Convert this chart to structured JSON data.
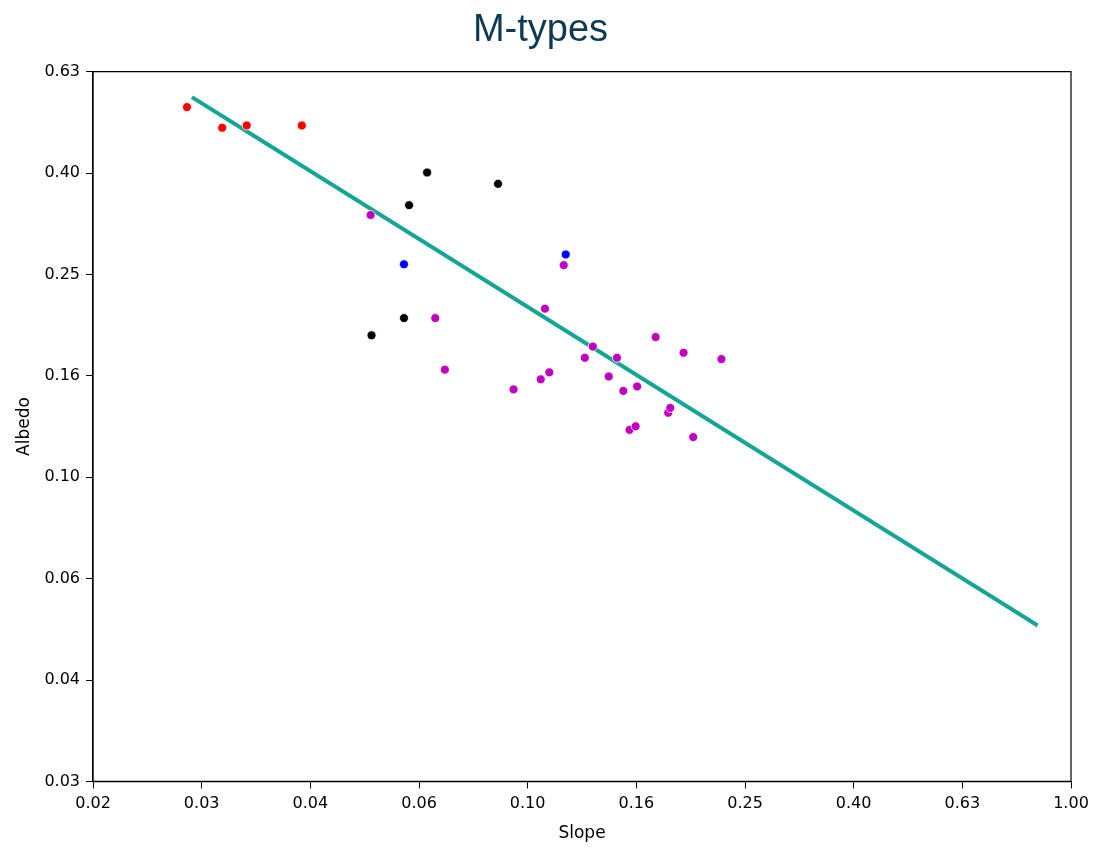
{
  "chart_data": {
    "type": "scatter",
    "title": "M-types",
    "xlabel": "Slope",
    "ylabel": "Albedo",
    "log": "xy",
    "grid": false,
    "legend": false,
    "xlim": [
      0.01585,
      1.0
    ],
    "xticks": [
      {
        "value": 0.01585,
        "label": "0.02"
      },
      {
        "value": 0.02512,
        "label": "0.03"
      },
      {
        "value": 0.03981,
        "label": "0.04"
      },
      {
        "value": 0.0631,
        "label": "0.06"
      },
      {
        "value": 0.1,
        "label": "0.10"
      },
      {
        "value": 0.1585,
        "label": "0.16"
      },
      {
        "value": 0.2512,
        "label": "0.25"
      },
      {
        "value": 0.3981,
        "label": "0.40"
      },
      {
        "value": 0.631,
        "label": "0.63"
      },
      {
        "value": 1.0,
        "label": "1.00"
      }
    ],
    "ylim": [
      0.02512,
      0.631
    ],
    "yticks": [
      {
        "value": 0.02512,
        "label": "0.03"
      },
      {
        "value": 0.03981,
        "label": "0.04"
      },
      {
        "value": 0.0631,
        "label": "0.06"
      },
      {
        "value": 0.1,
        "label": "0.10"
      },
      {
        "value": 0.1585,
        "label": "0.16"
      },
      {
        "value": 0.2512,
        "label": "0.25"
      },
      {
        "value": 0.3981,
        "label": "0.40"
      },
      {
        "value": 0.631,
        "label": "0.63"
      }
    ],
    "series": [
      {
        "marker": "circle",
        "color": "#ff0000",
        "x": [
          0.0236,
          0.0274,
          0.0304,
          0.0384
        ],
        "values": [
          0.537,
          0.489,
          0.494,
          0.494
        ]
      },
      {
        "marker": "circle",
        "color": "#000000",
        "x": [
          0.0516,
          0.0592,
          0.0605,
          0.0653,
          0.0882
        ],
        "values": [
          0.1905,
          0.206,
          0.344,
          0.399,
          0.379
        ]
      },
      {
        "marker": "circle",
        "color": "#0000ff",
        "x": [
          0.0592,
          0.1175
        ],
        "values": [
          0.263,
          0.275
        ]
      },
      {
        "marker": "circle",
        "color": "#bf00bf",
        "x": [
          0.0514,
          0.0676,
          0.0704,
          0.0942,
          0.1057,
          0.1076,
          0.1096,
          0.1165,
          0.1274,
          0.1318,
          0.141,
          0.146,
          0.15,
          0.154,
          0.158,
          0.159,
          0.172,
          0.1814,
          0.183,
          0.1936,
          0.2017,
          0.2273
        ],
        "values": [
          0.329,
          0.206,
          0.163,
          0.149,
          0.156,
          0.215,
          0.161,
          0.262,
          0.172,
          0.181,
          0.158,
          0.172,
          0.148,
          0.124,
          0.126,
          0.151,
          0.189,
          0.134,
          0.137,
          0.176,
          0.12,
          0.171
        ]
      },
      {
        "type": "line",
        "color": "#13a596",
        "x": [
          0.0241,
          0.868
        ],
        "values": [
          0.562,
          0.051
        ]
      }
    ]
  }
}
